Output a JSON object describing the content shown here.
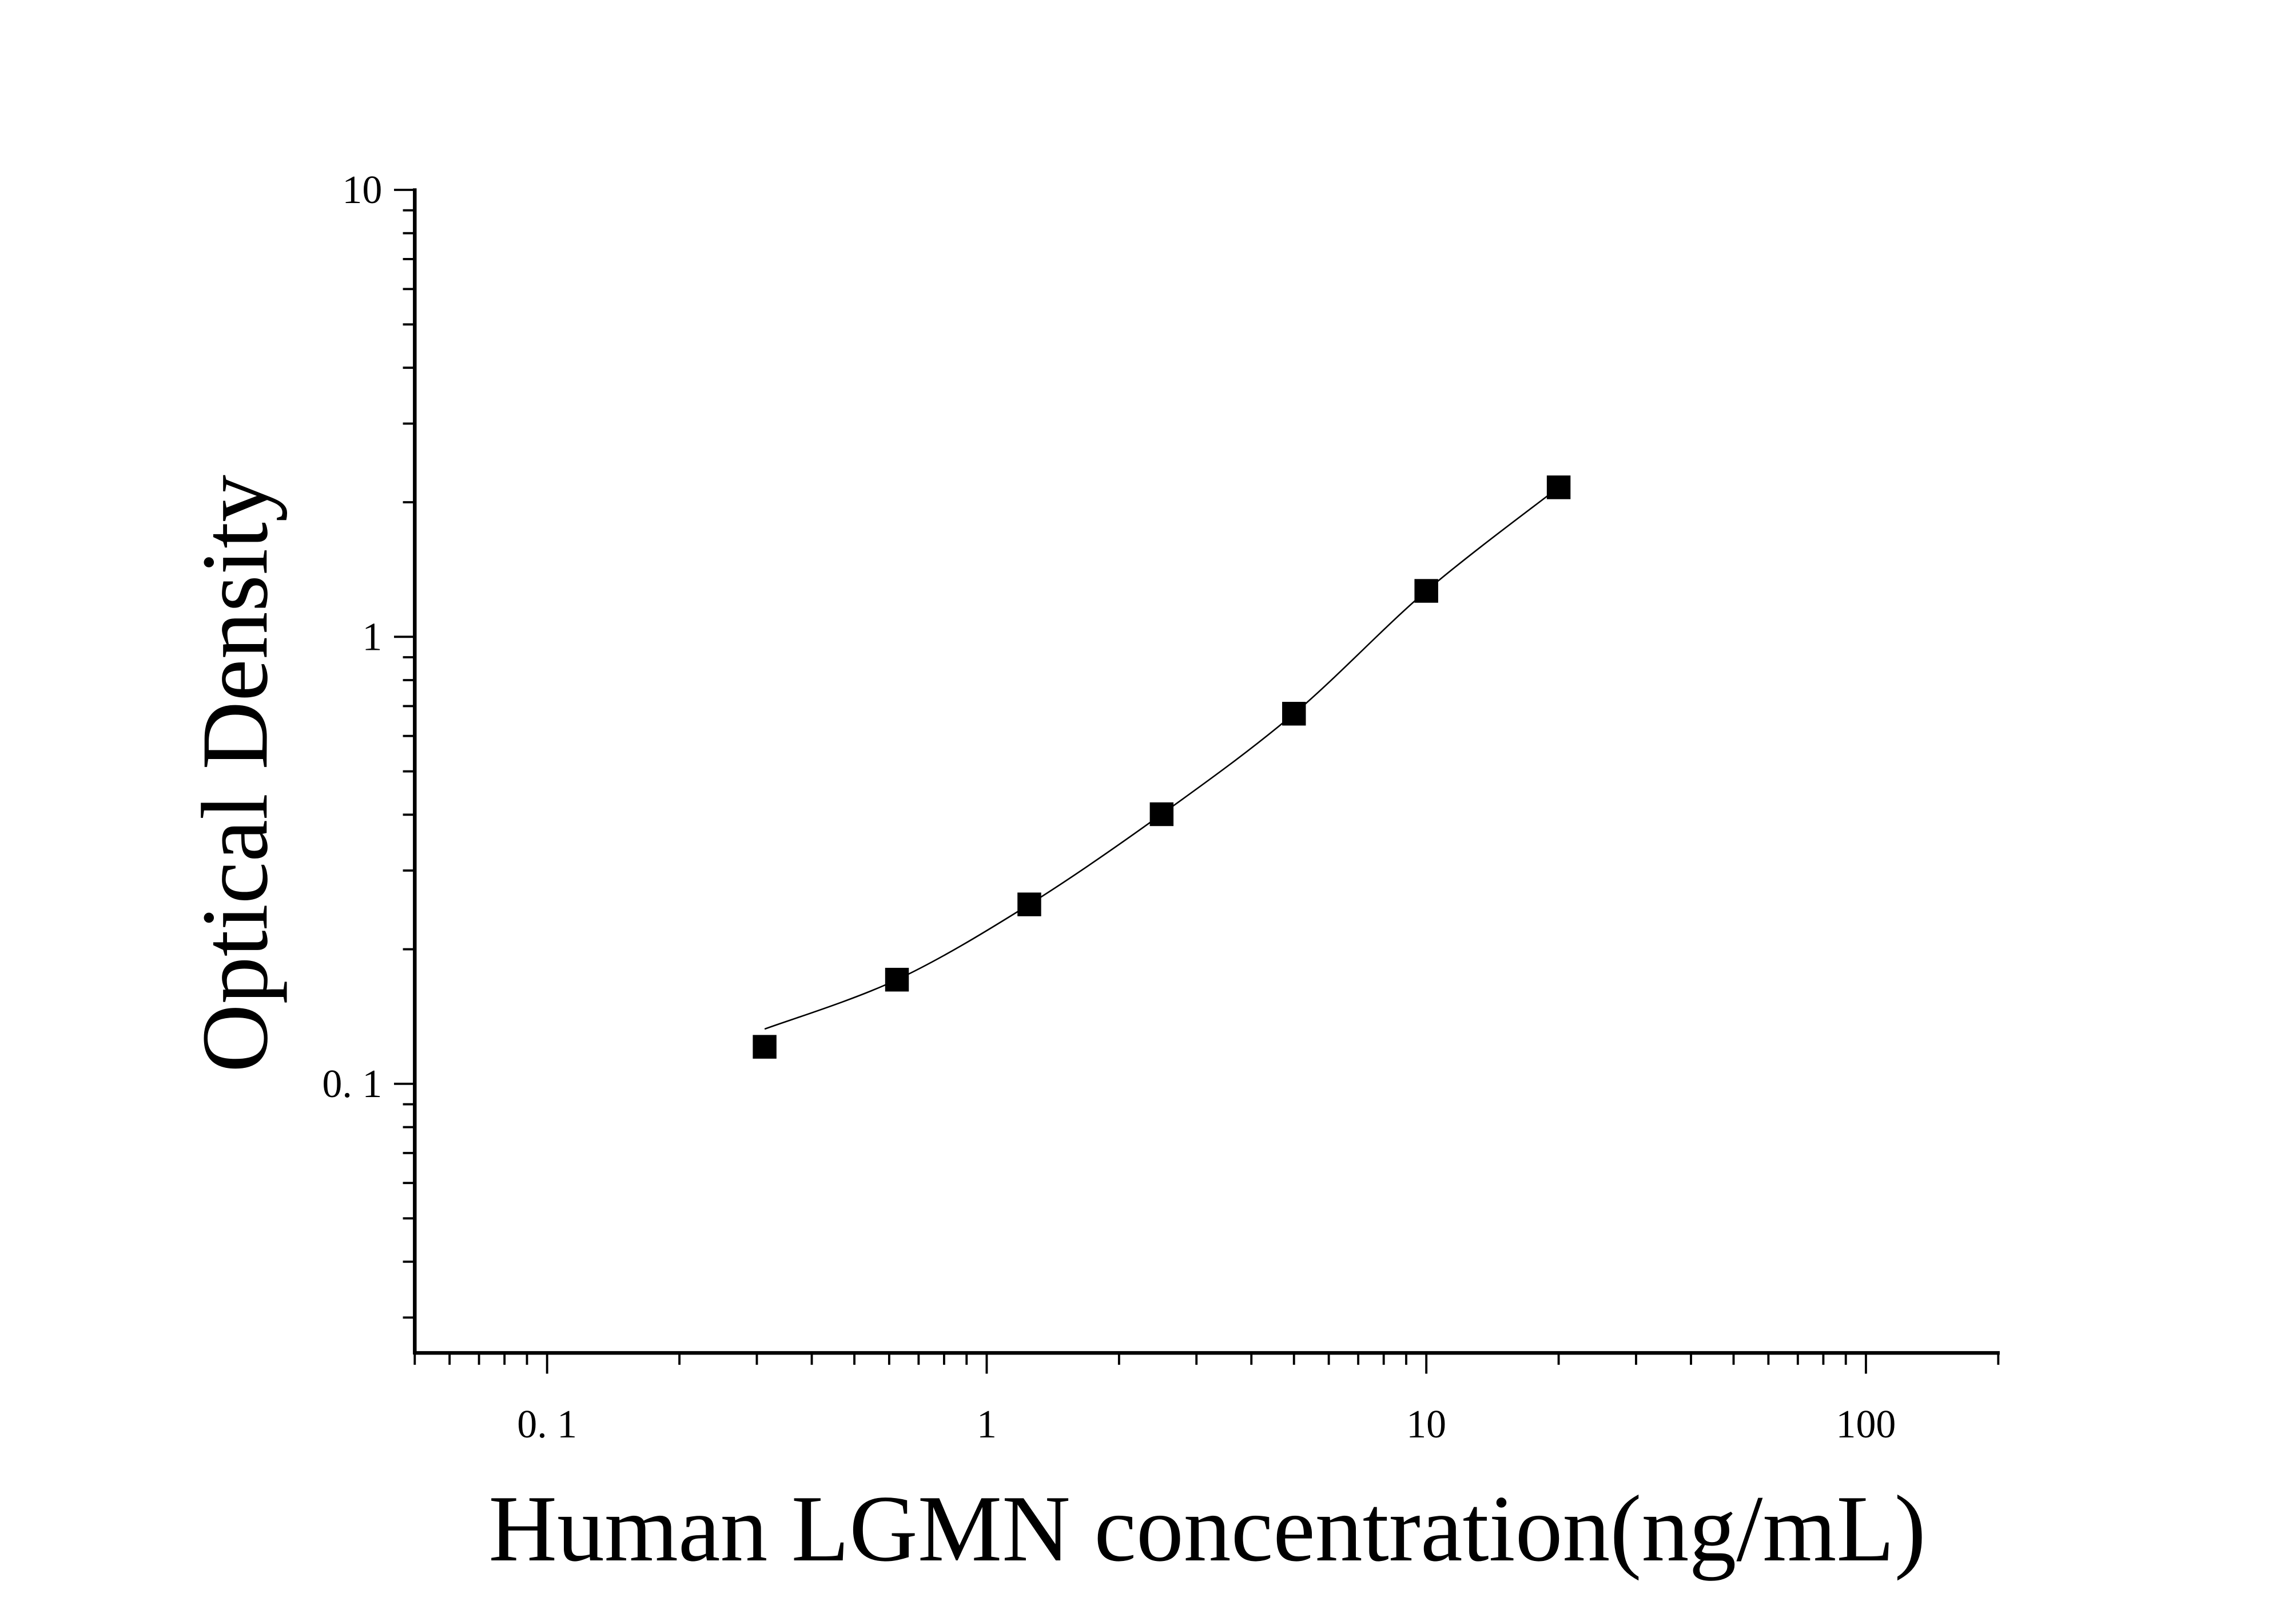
{
  "chart_data": {
    "type": "scatter",
    "xlabel": "Human LGMN concentration(ng/mL)",
    "ylabel": "Optical Density",
    "x_scale": "log",
    "y_scale": "log",
    "xlim": [
      0.05,
      200
    ],
    "ylim": [
      0.025,
      10
    ],
    "x_ticks": [
      {
        "value": 0.1,
        "label": "0. 1"
      },
      {
        "value": 1,
        "label": "1"
      },
      {
        "value": 10,
        "label": "10"
      },
      {
        "value": 100,
        "label": "100"
      }
    ],
    "y_ticks": [
      {
        "value": 0.1,
        "label": "0. 1"
      },
      {
        "value": 1,
        "label": "1"
      },
      {
        "value": 10,
        "label": "10"
      }
    ],
    "grid": false,
    "marker": "square",
    "color": "#000000",
    "x": [
      0.3125,
      0.625,
      1.25,
      2.5,
      5,
      10,
      20
    ],
    "y": [
      0.121,
      0.171,
      0.252,
      0.401,
      0.673,
      1.267,
      2.16
    ],
    "fit_curve": true
  }
}
